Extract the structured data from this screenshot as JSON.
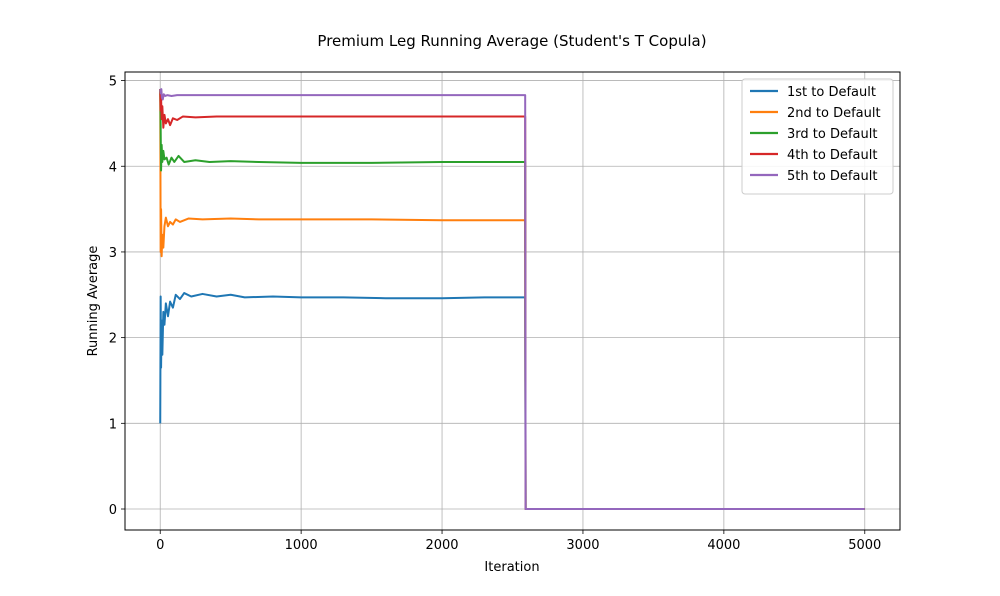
{
  "chart_data": {
    "type": "line",
    "title": "Premium Leg Running Average (Student's T Copula)",
    "xlabel": "Iteration",
    "ylabel": "Running Average",
    "xlim": [
      -250,
      5250
    ],
    "ylim": [
      -0.245,
      5.1
    ],
    "xticks": [
      0,
      1000,
      2000,
      3000,
      4000,
      5000
    ],
    "yticks": [
      0,
      1,
      2,
      3,
      4,
      5
    ],
    "grid": true,
    "legend_position": "top-right",
    "series": [
      {
        "name": "1st to Default",
        "color": "#1f77b4",
        "points": [
          [
            0,
            1.0
          ],
          [
            3,
            2.48
          ],
          [
            6,
            1.65
          ],
          [
            10,
            2.2
          ],
          [
            15,
            1.8
          ],
          [
            22,
            2.3
          ],
          [
            30,
            2.15
          ],
          [
            40,
            2.4
          ],
          [
            55,
            2.25
          ],
          [
            70,
            2.42
          ],
          [
            90,
            2.35
          ],
          [
            110,
            2.5
          ],
          [
            140,
            2.45
          ],
          [
            170,
            2.52
          ],
          [
            220,
            2.48
          ],
          [
            300,
            2.51
          ],
          [
            400,
            2.48
          ],
          [
            500,
            2.5
          ],
          [
            600,
            2.47
          ],
          [
            800,
            2.48
          ],
          [
            1000,
            2.47
          ],
          [
            1300,
            2.47
          ],
          [
            1600,
            2.46
          ],
          [
            2000,
            2.46
          ],
          [
            2300,
            2.47
          ],
          [
            2590,
            2.47
          ],
          [
            2593,
            0
          ],
          [
            5000,
            0
          ]
        ]
      },
      {
        "name": "2nd to Default",
        "color": "#ff7f0e",
        "points": [
          [
            0,
            4.9
          ],
          [
            3,
            3.0
          ],
          [
            6,
            3.5
          ],
          [
            10,
            2.95
          ],
          [
            15,
            3.2
          ],
          [
            22,
            3.05
          ],
          [
            30,
            3.3
          ],
          [
            40,
            3.4
          ],
          [
            55,
            3.3
          ],
          [
            70,
            3.35
          ],
          [
            90,
            3.32
          ],
          [
            110,
            3.38
          ],
          [
            140,
            3.35
          ],
          [
            200,
            3.39
          ],
          [
            300,
            3.38
          ],
          [
            500,
            3.39
          ],
          [
            700,
            3.38
          ],
          [
            1000,
            3.38
          ],
          [
            1500,
            3.38
          ],
          [
            2000,
            3.37
          ],
          [
            2590,
            3.37
          ],
          [
            2593,
            0
          ],
          [
            5000,
            0
          ]
        ]
      },
      {
        "name": "3rd to Default",
        "color": "#2ca02c",
        "points": [
          [
            0,
            4.9
          ],
          [
            3,
            4.45
          ],
          [
            6,
            3.95
          ],
          [
            10,
            4.25
          ],
          [
            15,
            4.05
          ],
          [
            22,
            4.18
          ],
          [
            30,
            4.08
          ],
          [
            45,
            4.1
          ],
          [
            60,
            4.02
          ],
          [
            80,
            4.1
          ],
          [
            100,
            4.05
          ],
          [
            130,
            4.12
          ],
          [
            170,
            4.05
          ],
          [
            250,
            4.07
          ],
          [
            350,
            4.05
          ],
          [
            500,
            4.06
          ],
          [
            700,
            4.05
          ],
          [
            1000,
            4.04
          ],
          [
            1500,
            4.04
          ],
          [
            2000,
            4.05
          ],
          [
            2590,
            4.05
          ],
          [
            2593,
            0
          ],
          [
            5000,
            0
          ]
        ]
      },
      {
        "name": "4th to Default",
        "color": "#d62728",
        "points": [
          [
            0,
            4.9
          ],
          [
            3,
            4.65
          ],
          [
            6,
            4.8
          ],
          [
            10,
            4.55
          ],
          [
            15,
            4.7
          ],
          [
            22,
            4.45
          ],
          [
            30,
            4.6
          ],
          [
            40,
            4.5
          ],
          [
            55,
            4.55
          ],
          [
            70,
            4.48
          ],
          [
            90,
            4.56
          ],
          [
            120,
            4.54
          ],
          [
            160,
            4.58
          ],
          [
            250,
            4.57
          ],
          [
            400,
            4.58
          ],
          [
            600,
            4.58
          ],
          [
            1000,
            4.58
          ],
          [
            1500,
            4.58
          ],
          [
            2000,
            4.58
          ],
          [
            2590,
            4.58
          ],
          [
            2593,
            0
          ],
          [
            5000,
            0
          ]
        ]
      },
      {
        "name": "5th to Default",
        "color": "#9467bd",
        "points": [
          [
            0,
            4.9
          ],
          [
            4,
            4.85
          ],
          [
            8,
            4.9
          ],
          [
            12,
            4.8
          ],
          [
            18,
            4.78
          ],
          [
            25,
            4.84
          ],
          [
            35,
            4.82
          ],
          [
            50,
            4.83
          ],
          [
            80,
            4.82
          ],
          [
            120,
            4.83
          ],
          [
            200,
            4.83
          ],
          [
            400,
            4.83
          ],
          [
            700,
            4.83
          ],
          [
            1000,
            4.83
          ],
          [
            1500,
            4.83
          ],
          [
            2000,
            4.83
          ],
          [
            2590,
            4.83
          ],
          [
            2593,
            0
          ],
          [
            5000,
            0
          ]
        ]
      }
    ]
  }
}
